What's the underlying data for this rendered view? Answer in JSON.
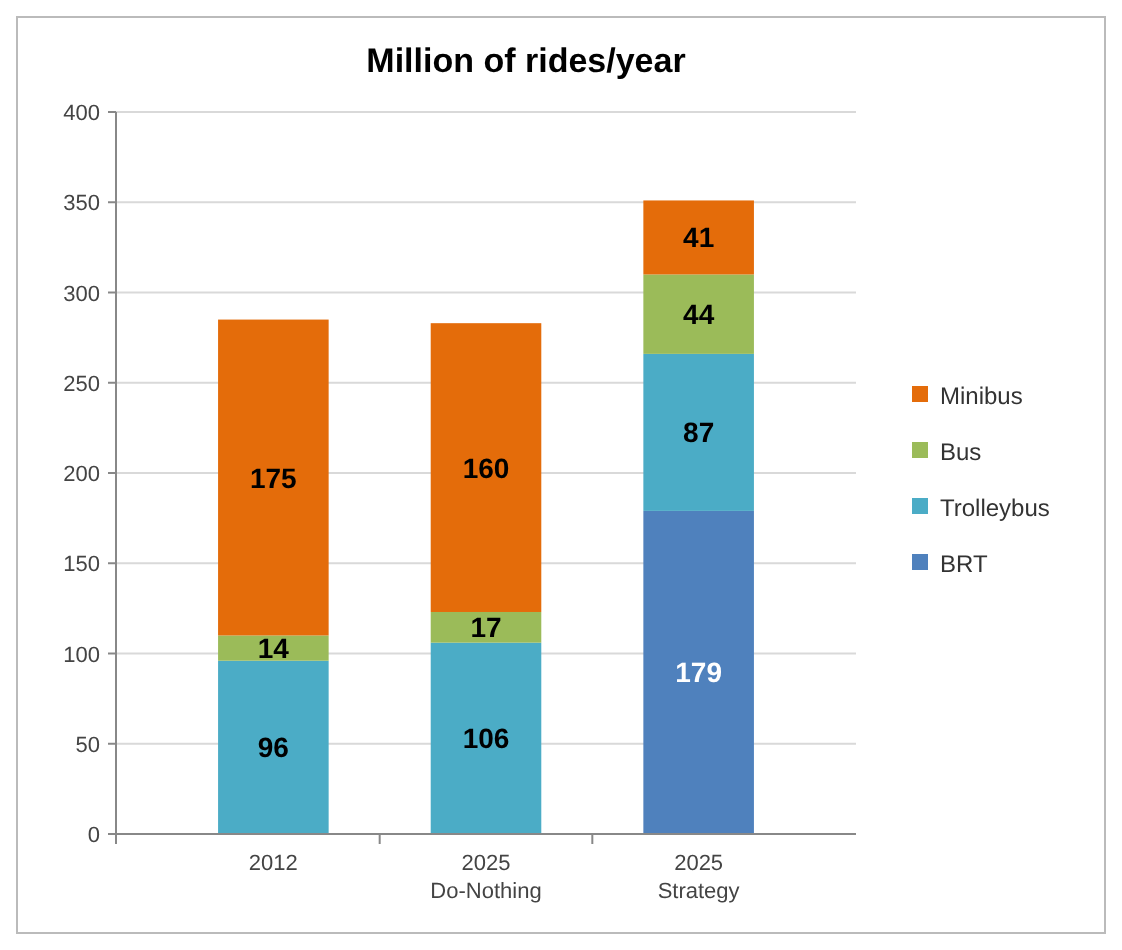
{
  "chart_data": {
    "type": "bar",
    "title": "Million of rides/year",
    "stacked": true,
    "categories": [
      "2012",
      "2025\nDo-Nothing",
      "2025\nStrategy"
    ],
    "series": [
      {
        "name": "BRT",
        "color": "#4f81bd",
        "values": [
          null,
          null,
          179
        ]
      },
      {
        "name": "Trolleybus",
        "color": "#4bacc6",
        "values": [
          96,
          106,
          87
        ]
      },
      {
        "name": "Bus",
        "color": "#9bbb59",
        "values": [
          14,
          17,
          44
        ]
      },
      {
        "name": "Minibus",
        "color": "#e46c0a",
        "values": [
          175,
          160,
          41
        ]
      }
    ],
    "ylim": [
      0,
      400
    ],
    "yticks": [
      0,
      50,
      100,
      150,
      200,
      250,
      300,
      350,
      400
    ],
    "grid": "y",
    "legend": "right",
    "data_labels": true
  }
}
